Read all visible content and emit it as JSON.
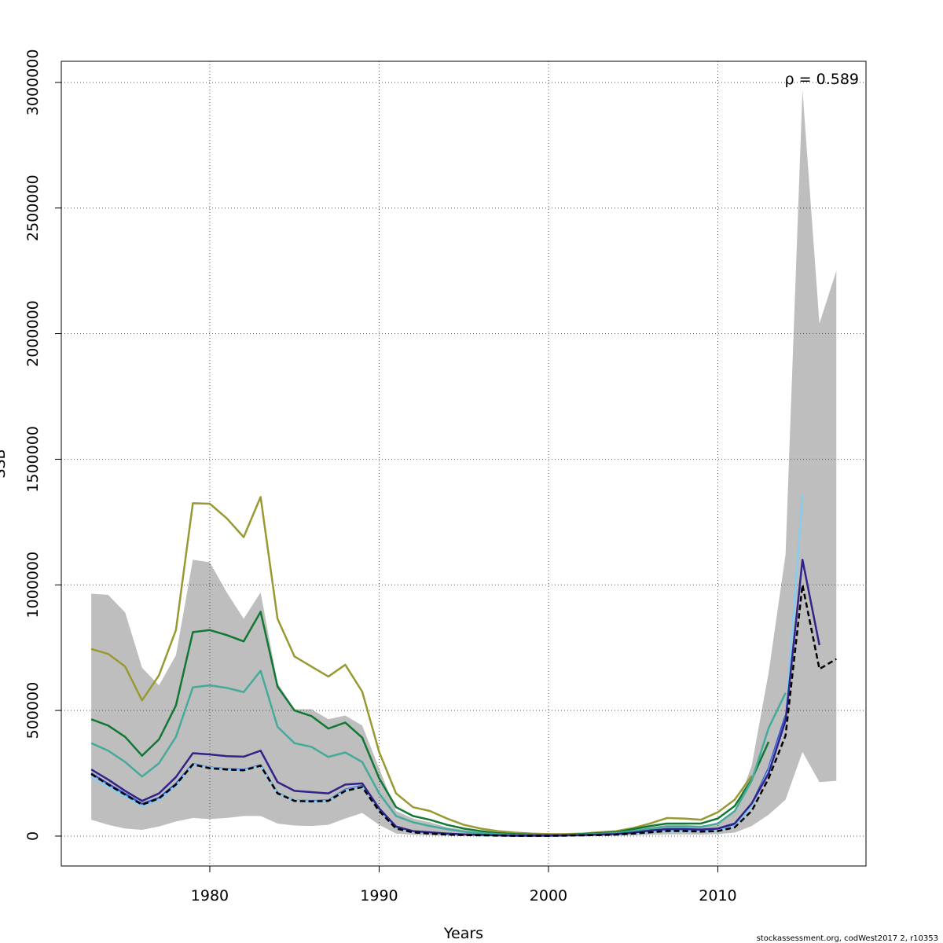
{
  "chart_data": {
    "type": "line",
    "xlabel": "Years",
    "ylabel": "SSB",
    "annotation": "ρ = 0.589",
    "footnote": "stockassessment.org, codWest2017 2, r10353",
    "x": [
      1973,
      1974,
      1975,
      1976,
      1977,
      1978,
      1979,
      1980,
      1981,
      1982,
      1983,
      1984,
      1985,
      1986,
      1987,
      1988,
      1989,
      1990,
      1991,
      1992,
      1993,
      1994,
      1995,
      1996,
      1997,
      1998,
      1999,
      2000,
      2001,
      2002,
      2003,
      2004,
      2005,
      2006,
      2007,
      2008,
      2009,
      2010,
      2011,
      2012,
      2013,
      2014,
      2015,
      2016,
      2017
    ],
    "xlim": [
      1971.23,
      2018.75
    ],
    "xticks": [
      1980,
      1990,
      2000,
      2010
    ],
    "ylim": [
      -119000,
      3084000
    ],
    "yticks": [
      0,
      500000,
      1000000,
      1500000,
      2000000,
      2500000,
      3000000
    ],
    "grid": true,
    "band": {
      "color": "#bebebe",
      "lower": [
        65000,
        45000,
        30000,
        25000,
        38000,
        58000,
        72000,
        68000,
        72000,
        80000,
        80000,
        50000,
        42000,
        40000,
        45000,
        70000,
        92000,
        45000,
        10000,
        5000,
        3000,
        2000,
        1000,
        1000,
        0,
        0,
        0,
        0,
        0,
        1000,
        1000,
        2000,
        3000,
        5000,
        7000,
        7000,
        6000,
        8000,
        14000,
        40000,
        85000,
        145000,
        335000,
        215000,
        220000
      ],
      "upper": [
        965000,
        960000,
        890000,
        670000,
        600000,
        720000,
        1100000,
        1090000,
        970000,
        865000,
        970000,
        610000,
        505000,
        505000,
        465000,
        480000,
        440000,
        270000,
        100000,
        70000,
        55000,
        35000,
        25000,
        15000,
        10000,
        6000,
        4000,
        3000,
        5000,
        7000,
        10000,
        15000,
        25000,
        35000,
        45000,
        45000,
        42000,
        50000,
        100000,
        280000,
        650000,
        1120000,
        2970000,
        2040000,
        2250000
      ]
    },
    "series": [
      {
        "color": "#999933",
        "values": [
          745000,
          725000,
          675000,
          540000,
          640000,
          820000,
          1325000,
          1323000,
          1265000,
          1190000,
          1350000,
          865000,
          715000,
          675000,
          635000,
          682000,
          575000,
          335000,
          170000,
          115000,
          100000,
          70000,
          45000,
          30000,
          20000,
          14000,
          10000,
          8000,
          8000,
          10000,
          15000,
          20000,
          32000,
          50000,
          72000,
          70000,
          65000,
          95000,
          145000,
          240000,
          null,
          null,
          null,
          null,
          null
        ]
      },
      {
        "color": "#117733",
        "values": [
          465000,
          440000,
          395000,
          320000,
          385000,
          520000,
          812000,
          820000,
          800000,
          775000,
          893000,
          595000,
          500000,
          478000,
          428000,
          452000,
          392000,
          230000,
          115000,
          80000,
          65000,
          45000,
          30000,
          20000,
          12000,
          8000,
          6000,
          4000,
          5000,
          8000,
          12000,
          15000,
          28000,
          40000,
          50000,
          50000,
          50000,
          70000,
          120000,
          225000,
          375000,
          null,
          null,
          null,
          null
        ]
      },
      {
        "color": "#44aa99",
        "values": [
          370000,
          340000,
          295000,
          237000,
          290000,
          395000,
          592000,
          600000,
          590000,
          573000,
          658000,
          435000,
          370000,
          355000,
          315000,
          333000,
          295000,
          170000,
          80000,
          55000,
          40000,
          28000,
          18000,
          12000,
          8000,
          5000,
          4000,
          3000,
          4000,
          6000,
          9000,
          12000,
          20000,
          30000,
          38000,
          38000,
          36000,
          50000,
          100000,
          220000,
          430000,
          570000,
          null,
          null,
          null
        ]
      },
      {
        "color": "#3355cc",
        "values": [
          250000,
          208000,
          168000,
          128000,
          152000,
          208000,
          287000,
          273000,
          267000,
          264000,
          282000,
          172000,
          142000,
          140000,
          142000,
          185000,
          200000,
          110000,
          35000,
          18000,
          12000,
          8000,
          5000,
          4000,
          3000,
          2000,
          2000,
          2000,
          2000,
          3000,
          5000,
          7000,
          12000,
          18000,
          24000,
          24000,
          22000,
          25000,
          45000,
          125000,
          270000,
          480000,
          null,
          null,
          null
        ]
      },
      {
        "color": "#88ccee",
        "values": [
          235000,
          195000,
          158000,
          120000,
          145000,
          200000,
          285000,
          272000,
          265000,
          262000,
          280000,
          170000,
          142000,
          138000,
          140000,
          182000,
          197000,
          105000,
          32000,
          16000,
          11000,
          7000,
          5000,
          3000,
          2000,
          1000,
          1000,
          1000,
          2000,
          3000,
          4000,
          6000,
          10000,
          15000,
          20000,
          20000,
          18000,
          22000,
          40000,
          120000,
          260000,
          460000,
          1360000,
          null,
          null
        ]
      },
      {
        "color": "#332288",
        "values": [
          265000,
          225000,
          180000,
          140000,
          170000,
          235000,
          330000,
          325000,
          318000,
          316000,
          340000,
          215000,
          180000,
          175000,
          170000,
          205000,
          210000,
          110000,
          38000,
          20000,
          15000,
          10000,
          7000,
          5000,
          3000,
          2000,
          2000,
          2000,
          3000,
          4000,
          6000,
          8000,
          14000,
          22000,
          28000,
          28000,
          26000,
          30000,
          50000,
          130000,
          250000,
          460000,
          1100000,
          760000,
          null
        ]
      },
      {
        "color": "#000000",
        "dashed": true,
        "values": [
          247000,
          205000,
          165000,
          125000,
          150000,
          205000,
          285000,
          270000,
          265000,
          262000,
          280000,
          170000,
          140000,
          138000,
          140000,
          180000,
          195000,
          100000,
          30000,
          15000,
          10000,
          6000,
          4000,
          3000,
          2000,
          1000,
          1000,
          1000,
          2000,
          3000,
          4000,
          6000,
          10000,
          15000,
          20000,
          20000,
          18000,
          20000,
          35000,
          100000,
          230000,
          400000,
          1000000,
          665000,
          705000
        ]
      }
    ]
  }
}
